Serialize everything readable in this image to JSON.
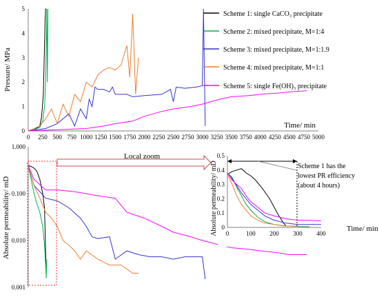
{
  "chart_data": [
    {
      "type": "line",
      "xlabel": "Time/ min",
      "ylabel": "Pressure/ MPa",
      "xlim": [
        0,
        5000
      ],
      "ylim": [
        0,
        5
      ],
      "xticks": [
        "0",
        "250",
        "500",
        "750",
        "1000",
        "1250",
        "1500",
        "1750",
        "2000",
        "2250",
        "2500",
        "2750",
        "3000",
        "3250",
        "3500",
        "3750",
        "4000",
        "4250",
        "4500",
        "4750",
        "5000"
      ],
      "yticks": [
        "0",
        "1",
        "2",
        "3",
        "4",
        "5"
      ],
      "series": [
        {
          "name": "Scheme 1: single CaCO₃ precipitate",
          "color": "#000000",
          "x": [
            0,
            100,
            200,
            230,
            260,
            275,
            290,
            300,
            310
          ],
          "y": [
            0,
            0.05,
            0.2,
            0.6,
            1.5,
            3.0,
            4.5,
            5.0,
            5.0
          ]
        },
        {
          "name": "Scheme 2: mixed precipitate, M=1:4",
          "color": "#00b050",
          "x": [
            0,
            100,
            200,
            250,
            280,
            300,
            310,
            320,
            330,
            340
          ],
          "y": [
            0,
            0.05,
            0.15,
            0.4,
            1.0,
            2.0,
            3.5,
            5.0,
            2.0,
            5.0
          ]
        },
        {
          "name": "Scheme 3: mixed precipitate, M=1:1.9",
          "color": "#3333cc",
          "x": [
            0,
            300,
            500,
            700,
            800,
            900,
            1000,
            1050,
            1100,
            1150,
            1200,
            1300,
            1400,
            1450,
            1500,
            1700,
            1800,
            2000,
            2300,
            2450,
            2500,
            2550,
            2700,
            2900,
            3000,
            3020,
            3050
          ],
          "y": [
            0,
            0.1,
            0.3,
            0.7,
            0.2,
            0.9,
            0.5,
            1.3,
            1.0,
            1.8,
            1.7,
            1.7,
            1.6,
            1.8,
            1.5,
            1.5,
            1.4,
            1.45,
            1.5,
            1.7,
            1.2,
            1.8,
            1.75,
            1.8,
            1.85,
            5.0,
            0.2
          ]
        },
        {
          "name": "Scheme 4: mixed precipitate, M=1:1",
          "color": "#ed7d31",
          "x": [
            0,
            200,
            300,
            400,
            500,
            600,
            700,
            800,
            900,
            1000,
            1100,
            1200,
            1300,
            1400,
            1500,
            1600,
            1700,
            1750,
            1800,
            1850,
            1900
          ],
          "y": [
            0,
            0.2,
            0.5,
            0.9,
            0.3,
            1.1,
            0.6,
            1.5,
            1.2,
            2.0,
            1.8,
            2.3,
            2.5,
            2.6,
            2.5,
            2.7,
            3.5,
            2.2,
            4.8,
            1.5,
            3.0
          ]
        },
        {
          "name": "Scheme 5: single Fe(OH)₃ precipitate",
          "color": "#ff00ff",
          "x": [
            0,
            500,
            1000,
            1300,
            1500,
            1800,
            2000,
            2300,
            2500,
            2800,
            3000,
            3300,
            3500,
            3800,
            4000,
            4300,
            4500,
            4800
          ],
          "y": [
            0,
            0.05,
            0.1,
            0.2,
            0.3,
            0.4,
            0.6,
            0.8,
            0.9,
            1.0,
            1.1,
            1.3,
            1.4,
            1.45,
            1.5,
            1.55,
            1.6,
            1.65
          ]
        }
      ]
    },
    {
      "type": "line",
      "xlabel": "",
      "ylabel": "Absolute permeability/ mD",
      "yscale": "log",
      "xlim": [
        0,
        5000
      ],
      "ylim": [
        0.001,
        1
      ],
      "yticks": [
        "0.001",
        "0.010",
        "0.100",
        "1.000"
      ],
      "series": [
        {
          "name": "Scheme 1: single CaCO₃ precipitate",
          "color": "#000000",
          "x": [
            0,
            50,
            100,
            150,
            200,
            250,
            280,
            300,
            310
          ],
          "y": [
            0.4,
            0.38,
            0.35,
            0.3,
            0.2,
            0.1,
            0.05,
            0.005,
            0.0016
          ]
        },
        {
          "name": "Scheme 2: mixed precipitate, M=1:4",
          "color": "#00b050",
          "x": [
            0,
            50,
            100,
            150,
            200,
            250,
            280,
            300,
            310,
            320
          ],
          "y": [
            0.4,
            0.2,
            0.1,
            0.06,
            0.04,
            0.02,
            0.008,
            0.003,
            0.0016,
            0.004
          ]
        },
        {
          "name": "Scheme 3: mixed precipitate, M=1:1.9",
          "color": "#3333cc",
          "x": [
            0,
            100,
            300,
            500,
            700,
            900,
            1000,
            1100,
            1200,
            1400,
            1500,
            1700,
            1900,
            2100,
            2300,
            2500,
            2700,
            2900,
            3000,
            3050
          ],
          "y": [
            0.4,
            0.15,
            0.08,
            0.07,
            0.05,
            0.03,
            0.02,
            0.012,
            0.011,
            0.012,
            0.004,
            0.006,
            0.005,
            0.0045,
            0.0045,
            0.004,
            0.0045,
            0.0045,
            0.0045,
            0.0015
          ]
        },
        {
          "name": "Scheme 4: mixed precipitate, M=1:1",
          "color": "#ed7d31",
          "x": [
            0,
            100,
            200,
            300,
            400,
            500,
            600,
            700,
            800,
            900,
            1000,
            1200,
            1400,
            1600,
            1800,
            1900
          ],
          "y": [
            0.4,
            0.15,
            0.08,
            0.04,
            0.03,
            0.02,
            0.01,
            0.008,
            0.006,
            0.004,
            0.006,
            0.004,
            0.003,
            0.003,
            0.002,
            0.002
          ]
        },
        {
          "name": "Scheme 5: single Fe(OH)₃ precipitate",
          "color": "#ff00ff",
          "x": [
            0,
            100,
            300,
            500,
            800,
            1000,
            1200,
            1500,
            1700,
            2000,
            2300,
            2500,
            2800,
            3000,
            3300,
            3500,
            3800,
            4000,
            4300,
            4500,
            4800
          ],
          "y": [
            0.4,
            0.2,
            0.12,
            0.12,
            0.11,
            0.1,
            0.09,
            0.08,
            0.04,
            0.03,
            0.02,
            0.015,
            0.012,
            0.01,
            0.008,
            0.007,
            0.0065,
            0.006,
            0.0055,
            0.005,
            0.005
          ]
        }
      ]
    },
    {
      "type": "line",
      "xlabel": "Time/ min",
      "ylabel": "Absolute permeability/ mD",
      "xlim": [
        0,
        400
      ],
      "ylim": [
        0,
        0.5
      ],
      "xticks": [
        "0",
        "100",
        "200",
        "300",
        "400"
      ],
      "yticks": [
        "0",
        "0.1",
        "0.2",
        "0.3",
        "0.4",
        "0.5"
      ],
      "series": [
        {
          "name": "Scheme 1: single CaCO₃ precipitate",
          "color": "#000000",
          "x": [
            0,
            20,
            40,
            60,
            80,
            100,
            120,
            150,
            180,
            200,
            220,
            240,
            250
          ],
          "y": [
            0.37,
            0.39,
            0.4,
            0.41,
            0.38,
            0.36,
            0.33,
            0.27,
            0.2,
            0.14,
            0.08,
            0.03,
            0.01
          ]
        },
        {
          "name": "Scheme 2: mixed precipitate, M=1:4",
          "color": "#00b050",
          "x": [
            0,
            20,
            40,
            60,
            80,
            100,
            130,
            160,
            200,
            240,
            280,
            320,
            350
          ],
          "y": [
            0.38,
            0.35,
            0.28,
            0.22,
            0.16,
            0.12,
            0.07,
            0.04,
            0.02,
            0.01,
            0.008,
            0.005,
            0.005
          ]
        },
        {
          "name": "Scheme 3: mixed precipitate, M=1:1.9",
          "color": "#3333cc",
          "x": [
            0,
            20,
            40,
            60,
            80,
            100,
            130,
            160,
            200,
            250,
            300,
            350,
            400
          ],
          "y": [
            0.38,
            0.34,
            0.29,
            0.24,
            0.2,
            0.16,
            0.12,
            0.08,
            0.05,
            0.03,
            0.02,
            0.02,
            0.02
          ]
        },
        {
          "name": "Scheme 4: mixed precipitate, M=1:1",
          "color": "#ed7d31",
          "x": [
            0,
            20,
            40,
            60,
            80,
            100,
            130,
            160,
            200,
            250,
            300
          ],
          "y": [
            0.37,
            0.3,
            0.22,
            0.16,
            0.12,
            0.08,
            0.05,
            0.03,
            0.02,
            0.01,
            0.008
          ]
        },
        {
          "name": "Scheme 5: single Fe(OH)₃ precipitate",
          "color": "#ff00ff",
          "x": [
            0,
            20,
            40,
            60,
            80,
            100,
            130,
            160,
            200,
            250,
            300,
            350,
            400
          ],
          "y": [
            0.38,
            0.33,
            0.3,
            0.27,
            0.22,
            0.18,
            0.14,
            0.1,
            0.08,
            0.06,
            0.05,
            0.05,
            0.045
          ]
        }
      ]
    }
  ],
  "annotations": {
    "local_zoom": "Local zoom",
    "inset_note": [
      "Scheme 1 has the",
      "lowest PR efficiency",
      "(about 4 hours)"
    ]
  }
}
